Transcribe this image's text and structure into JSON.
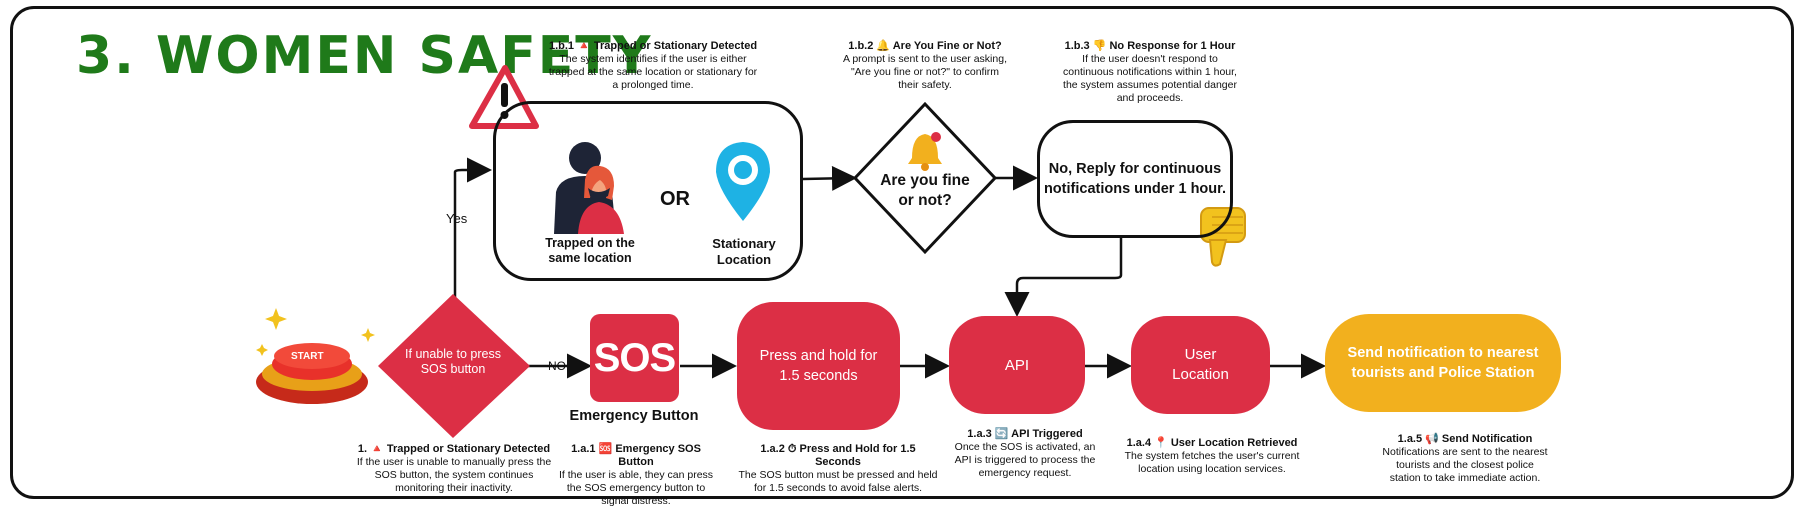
{
  "title": "3. WOMEN SAFETY",
  "nodes": {
    "start": "START",
    "unable_sos": "If unable to press SOS button",
    "sos_logo": "SOS",
    "sos_label": "Emergency Button",
    "press_hold": "Press and hold for 1.5 seconds",
    "api": "API",
    "user_location": "User Location",
    "send_notification": "Send notification to nearest tourists and Police Station",
    "trapped_label": "Trapped on the same location",
    "or": "OR",
    "stationary_label": "Stationary Location",
    "fine_question": "Are you fine or not?",
    "no_reply": "No, Reply for continuous notifications under 1 hour."
  },
  "edges": {
    "yes": "Yes",
    "no": "NO"
  },
  "notes": {
    "n1": {
      "head": "1. 🔺 Trapped or Stationary Detected",
      "body": "If the user is unable to manually press the SOS button, the system continues monitoring their inactivity."
    },
    "n1a1": {
      "head": "1.a.1 🆘 Emergency SOS Button",
      "body": "If the user is able, they can press the SOS emergency button to signal distress."
    },
    "n1a2": {
      "head": "1.a.2 ⏱ Press and Hold for 1.5 Seconds",
      "body": "The SOS button must be pressed and held for 1.5 seconds to avoid false alerts."
    },
    "n1a3": {
      "head": "1.a.3 🔄 API Triggered",
      "body": "Once the SOS is activated, an API is triggered to process the emergency request."
    },
    "n1a4": {
      "head": "1.a.4 📍 User Location Retrieved",
      "body": "The system fetches the user's current location using location services."
    },
    "n1a5": {
      "head": "1.a.5 📢 Send Notification",
      "body": "Notifications are sent to the nearest tourists and the closest police station to take immediate action."
    },
    "n1b1": {
      "head": "1.b.1 🔺 Trapped or Stationary Detected",
      "body": "The system identifies if the user is either trapped at the same location or stationary for a prolonged time."
    },
    "n1b2": {
      "head": "1.b.2 🔔 Are You Fine or Not?",
      "body": "A prompt is sent to the user asking, \"Are you fine or not?\" to confirm their safety."
    },
    "n1b3": {
      "head": "1.b.3 👎 No Response for 1 Hour",
      "body": "If the user doesn't respond to continuous notifications within 1 hour, the system assumes potential danger and proceeds."
    }
  },
  "colors": {
    "title": "#1f7a1a",
    "red": "#dc2f45",
    "gold": "#f2b01e"
  },
  "icons": [
    "start-button-icon",
    "warning-icon",
    "person-trapped-icon",
    "location-pin-icon",
    "bell-icon",
    "thumbs-down-icon",
    "sparkle-icon"
  ]
}
